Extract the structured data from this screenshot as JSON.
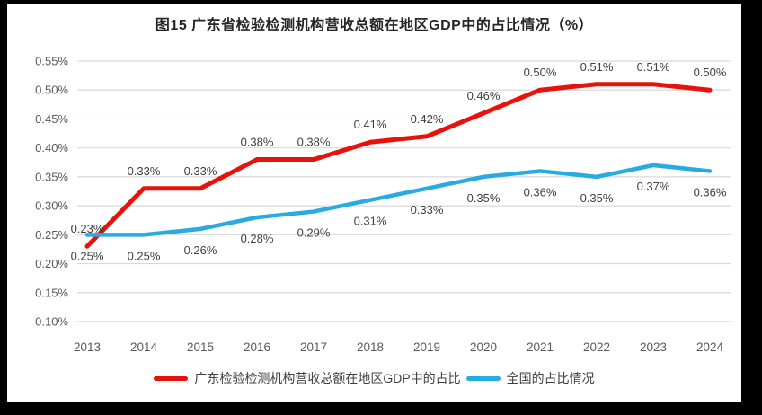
{
  "title": "图15  广东省检验检测机构营收总额在地区GDP中的占比情况（%）",
  "chart_data": {
    "type": "line",
    "title": "图15  广东省检验检测机构营收总额在地区GDP中的占比情况（%）",
    "categories": [
      "2013",
      "2014",
      "2015",
      "2016",
      "2017",
      "2018",
      "2019",
      "2020",
      "2021",
      "2022",
      "2023",
      "2024"
    ],
    "series": [
      {
        "name": "广东检验检测机构营收总额在地区GDP中的占比",
        "color": "#e8120c",
        "label_position": "above",
        "values": [
          0.23,
          0.33,
          0.33,
          0.38,
          0.38,
          0.41,
          0.42,
          0.46,
          0.5,
          0.51,
          0.51,
          0.5
        ],
        "labels": [
          "0.23%",
          "0.33%",
          "0.33%",
          "0.38%",
          "0.38%",
          "0.41%",
          "0.42%",
          "0.46%",
          "0.50%",
          "0.51%",
          "0.51%",
          "0.50%"
        ]
      },
      {
        "name": "全国的占比情况",
        "color": "#29abe2",
        "label_position": "below",
        "values": [
          0.25,
          0.25,
          0.26,
          0.28,
          0.29,
          0.31,
          0.33,
          0.35,
          0.36,
          0.35,
          0.37,
          0.36
        ],
        "labels": [
          "0.25%",
          "0.25%",
          "0.26%",
          "0.28%",
          "0.29%",
          "0.31%",
          "0.33%",
          "0.35%",
          "0.36%",
          "0.35%",
          "0.37%",
          "0.36%"
        ]
      }
    ],
    "xlabel": "",
    "ylabel": "",
    "ylim": [
      0.1,
      0.55
    ],
    "ytick_step": 0.05,
    "ytick_labels": [
      "0.55%",
      "0.50%",
      "0.45%",
      "0.40%",
      "0.35%",
      "0.30%",
      "0.25%",
      "0.20%",
      "0.15%",
      "0.10%"
    ],
    "grid": true,
    "legend_position": "bottom",
    "colors": {
      "grid": "#d9d9d9",
      "tick_text": "#595959",
      "data_label_text": "#404040",
      "title_text": "#262626",
      "background": "#ffffff",
      "frame": "#000000"
    }
  }
}
